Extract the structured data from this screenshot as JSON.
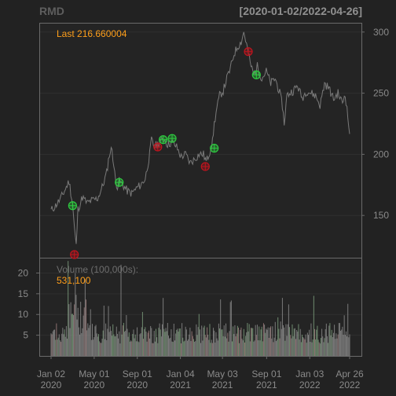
{
  "chart_data": {
    "type": "line",
    "ticker": "RMD",
    "date_range_label": "[2020-01-02/2022-04-26]",
    "last_label": "Last 216.660004",
    "price": {
      "ylim": [
        118,
        305
      ],
      "y_ticks": [
        150,
        200,
        250,
        300
      ],
      "points": [
        [
          0,
          154
        ],
        [
          5,
          158
        ],
        [
          10,
          163
        ],
        [
          15,
          170
        ],
        [
          20,
          178
        ],
        [
          24,
          160
        ],
        [
          26,
          140
        ],
        [
          28,
          125
        ],
        [
          30,
          155
        ],
        [
          35,
          165
        ],
        [
          40,
          160
        ],
        [
          45,
          162
        ],
        [
          52,
          164
        ],
        [
          58,
          175
        ],
        [
          62,
          185
        ],
        [
          65,
          200
        ],
        [
          68,
          205
        ],
        [
          70,
          190
        ],
        [
          72,
          178
        ],
        [
          74,
          174
        ],
        [
          76,
          178
        ],
        [
          80,
          175
        ],
        [
          85,
          170
        ],
        [
          90,
          168
        ],
        [
          95,
          172
        ],
        [
          100,
          175
        ],
        [
          105,
          180
        ],
        [
          110,
          200
        ],
        [
          112,
          212
        ],
        [
          115,
          206
        ],
        [
          118,
          208
        ],
        [
          122,
          210
        ],
        [
          126,
          213
        ],
        [
          130,
          208
        ],
        [
          135,
          210
        ],
        [
          140,
          206
        ],
        [
          145,
          198
        ],
        [
          150,
          200
        ],
        [
          155,
          193
        ],
        [
          160,
          196
        ],
        [
          165,
          200
        ],
        [
          170,
          200
        ],
        [
          173,
          194
        ],
        [
          176,
          200
        ],
        [
          180,
          210
        ],
        [
          182,
          225
        ],
        [
          185,
          238
        ],
        [
          188,
          248
        ],
        [
          192,
          252
        ],
        [
          196,
          262
        ],
        [
          200,
          270
        ],
        [
          204,
          282
        ],
        [
          208,
          288
        ],
        [
          212,
          292
        ],
        [
          215,
          300
        ],
        [
          218,
          290
        ],
        [
          222,
          275
        ],
        [
          226,
          265
        ],
        [
          230,
          272
        ],
        [
          235,
          262
        ],
        [
          240,
          268
        ],
        [
          245,
          258
        ],
        [
          250,
          262
        ],
        [
          255,
          250
        ],
        [
          258,
          240
        ],
        [
          260,
          225
        ],
        [
          263,
          248
        ],
        [
          266,
          250
        ],
        [
          270,
          252
        ],
        [
          275,
          256
        ],
        [
          280,
          246
        ],
        [
          285,
          252
        ],
        [
          290,
          250
        ],
        [
          295,
          248
        ],
        [
          300,
          240
        ],
        [
          305,
          258
        ],
        [
          310,
          254
        ],
        [
          315,
          245
        ],
        [
          320,
          250
        ],
        [
          325,
          242
        ],
        [
          328,
          250
        ],
        [
          331,
          230
        ],
        [
          333,
          216.66
        ]
      ],
      "buy_markers": [
        [
          24,
          158
        ],
        [
          76,
          177
        ],
        [
          125,
          212
        ],
        [
          135,
          213
        ],
        [
          182,
          205
        ],
        [
          229,
          265
        ]
      ],
      "sell_markers": [
        [
          26,
          118
        ],
        [
          119,
          206
        ],
        [
          172,
          190
        ],
        [
          220,
          284
        ]
      ]
    },
    "volume": {
      "title": "Volume (100,000s):",
      "last": "531,100",
      "ylim": [
        0,
        23.5
      ],
      "y_ticks": [
        5,
        10,
        15,
        20
      ],
      "seed": 7
    },
    "x_axis": {
      "total_days": 333,
      "ticks": [
        {
          "pos": 0,
          "line1": "Jan 02",
          "line2": "2020"
        },
        {
          "pos": 40,
          "line1": "May 01",
          "line2": "2020"
        },
        {
          "pos": 80,
          "line1": "Sep 01",
          "line2": "2020"
        },
        {
          "pos": 120,
          "line1": "Jan 04",
          "line2": "2021"
        },
        {
          "pos": 159,
          "line1": "May 03",
          "line2": "2021"
        },
        {
          "pos": 200,
          "line1": "Sep 01",
          "line2": "2021"
        },
        {
          "pos": 240,
          "line1": "Jan 03",
          "line2": "2022"
        },
        {
          "pos": 277,
          "line1": "Apr 26",
          "line2": "2022"
        }
      ]
    },
    "colors": {
      "background": "#222222",
      "price_line": "#7a7a7a",
      "buy": "#2ecc40",
      "sell": "#c0141e",
      "accent": "#ff9f1a",
      "text": "#888888",
      "volume_bar": "#8a8a8a"
    }
  }
}
